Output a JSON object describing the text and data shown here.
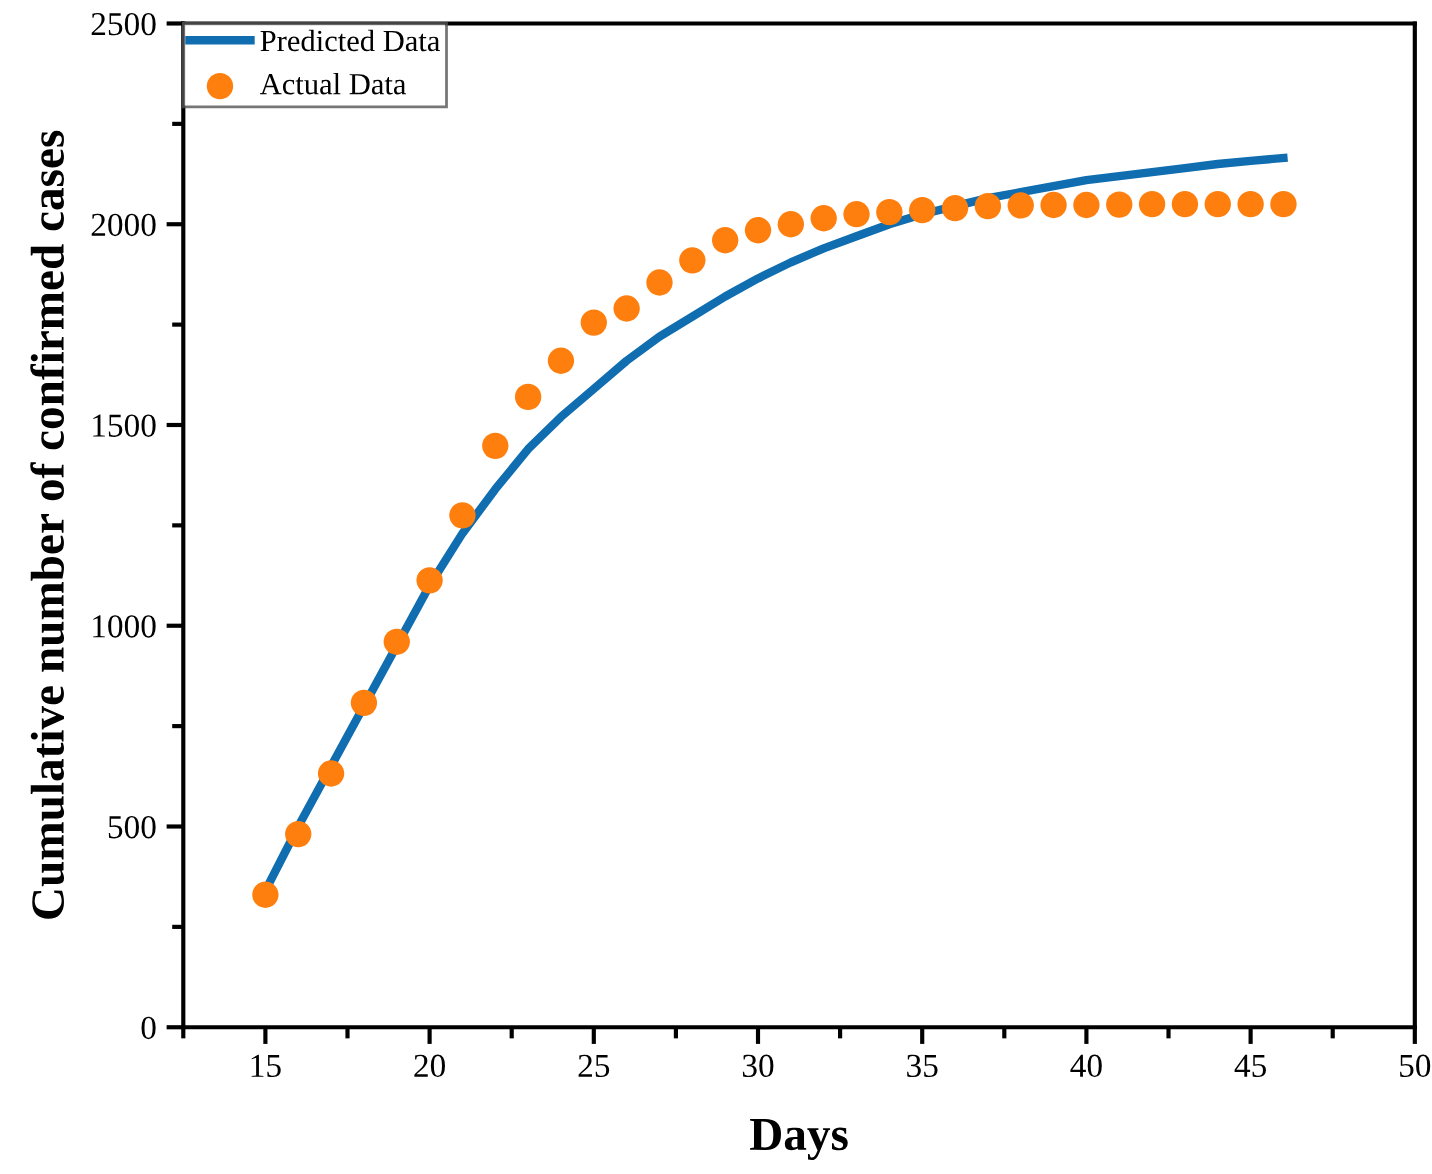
{
  "chart_data": {
    "type": "line",
    "xlabel": "Days",
    "ylabel": "Cumulative number of confirmed cases",
    "xlim": [
      12.5,
      50
    ],
    "xticks": [
      15,
      20,
      25,
      30,
      35,
      40,
      45,
      50
    ],
    "ylim": [
      0,
      2500
    ],
    "yticks": [
      0,
      500,
      1000,
      1500,
      2000,
      2500
    ],
    "grid": false,
    "legend": "top left",
    "series": [
      {
        "name": "Predicted Data",
        "color": "#0f6db0",
        "marker": "none",
        "line_style": "solid",
        "x": [
          15,
          16,
          17,
          18,
          19,
          20,
          21,
          22,
          23,
          24,
          25,
          26,
          27,
          28,
          29,
          30,
          31,
          32,
          33,
          34,
          35,
          36,
          37,
          38,
          39,
          40,
          41,
          42,
          43,
          44,
          45,
          46
        ],
        "values": [
          340,
          500,
          650,
          800,
          950,
          1100,
          1230,
          1340,
          1440,
          1520,
          1590,
          1660,
          1720,
          1770,
          1820,
          1865,
          1905,
          1940,
          1970,
          2000,
          2025,
          2045,
          2065,
          2080,
          2095,
          2110,
          2120,
          2130,
          2140,
          2150,
          2158,
          2165
        ]
      },
      {
        "name": "Actual Data",
        "type": "scatter",
        "color": "#ff7f0e",
        "marker": "circle",
        "x": [
          15,
          16,
          17,
          18,
          19,
          20,
          21,
          22,
          23,
          24,
          25,
          26,
          27,
          28,
          29,
          30,
          31,
          32,
          33,
          34,
          35,
          36,
          37,
          38,
          39,
          40,
          41,
          42,
          43,
          44,
          45,
          46
        ],
        "values": [
          330,
          481,
          632,
          808,
          960,
          1113,
          1275,
          1448,
          1570,
          1660,
          1755,
          1790,
          1855,
          1910,
          1960,
          1985,
          2000,
          2015,
          2025,
          2030,
          2035,
          2040,
          2045,
          2047,
          2048,
          2048,
          2049,
          2050,
          2050,
          2050,
          2050,
          2050
        ]
      }
    ]
  }
}
